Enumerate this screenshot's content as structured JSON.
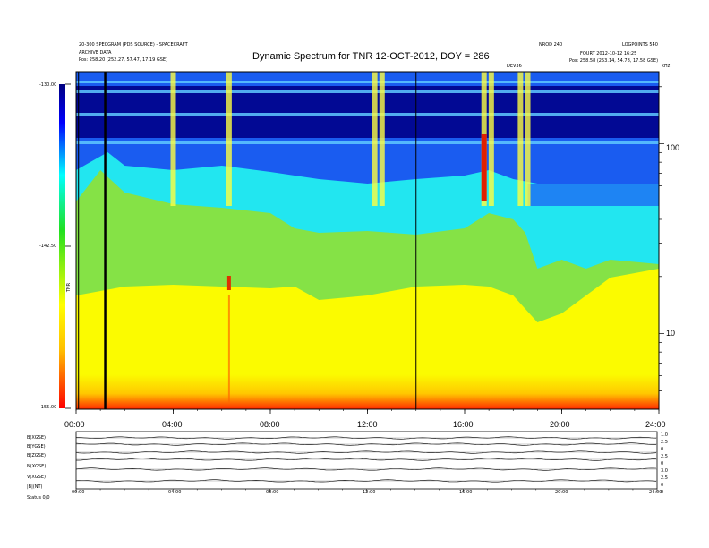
{
  "header": {
    "left_line1": "20-300 SPECGRAM (PDS SOURCE) - SPACECRAFT",
    "left_line2": "ARCHIVE DATA",
    "left_line3": "Pos: 258.20 (252.27, 57.47, 17.19 GSE)",
    "right_top_a": "NROD 240",
    "right_top_b": "LOGPOINTS 540",
    "right_line2": "FOURT 2012-10-12 16:25",
    "right_line3": "Pos: 258.58 (253.14, 54.78, 17.58 GSE)",
    "small_marker": "DEV36",
    "mhz_label": "kHz"
  },
  "chart_data": {
    "type": "heatmap",
    "title": "Dynamic Spectrum for TNR 12-OCT-2012, DOY = 286",
    "x_ticks": [
      "00:00",
      "04:00",
      "08:00",
      "12:00",
      "16:00",
      "20:00",
      "24:00"
    ],
    "x_range_hours": [
      0,
      24
    ],
    "y_scale": "log",
    "y_range_khz": [
      4,
      240
    ],
    "y_ticks": [
      "10",
      "100"
    ],
    "colorbar_ticks": [
      "-130.00",
      "-142.50",
      "-155.00"
    ],
    "colorbar_range": [
      -155,
      -130
    ],
    "colorbar_label": "TNR",
    "vertical_markers_hours": [
      0.1,
      1.2,
      14.0
    ],
    "bands": [
      {
        "name": "background",
        "color": "#fbfb00"
      },
      {
        "name": "green-band",
        "color": "#7ee04a"
      },
      {
        "name": "cyan-band",
        "color": "#22e6f0"
      },
      {
        "name": "blue-band",
        "color": "#1a5cf0"
      },
      {
        "name": "dark-band",
        "color": "#00008a"
      }
    ],
    "bursts_hours": [
      4.0,
      6.3,
      12.3,
      12.6,
      16.8,
      17.1,
      18.3,
      18.6
    ]
  },
  "lower_panel": {
    "left_labels": [
      "B(XGSE)",
      "B(YGSE)",
      "B(ZGSE)",
      "N(XGSE)",
      "V(XGSE)",
      "|B|(NT)",
      "Status"
    ],
    "right_labels": [
      "1.0",
      "2.5",
      "0",
      "2.5",
      "0",
      "3.0",
      "2.5",
      "0",
      "0"
    ],
    "x_ticks": [
      "00:00",
      "04:00",
      "08:00",
      "12:00",
      "16:00",
      "20:00",
      "24:00"
    ],
    "bottom_left": "Status   0/0"
  }
}
